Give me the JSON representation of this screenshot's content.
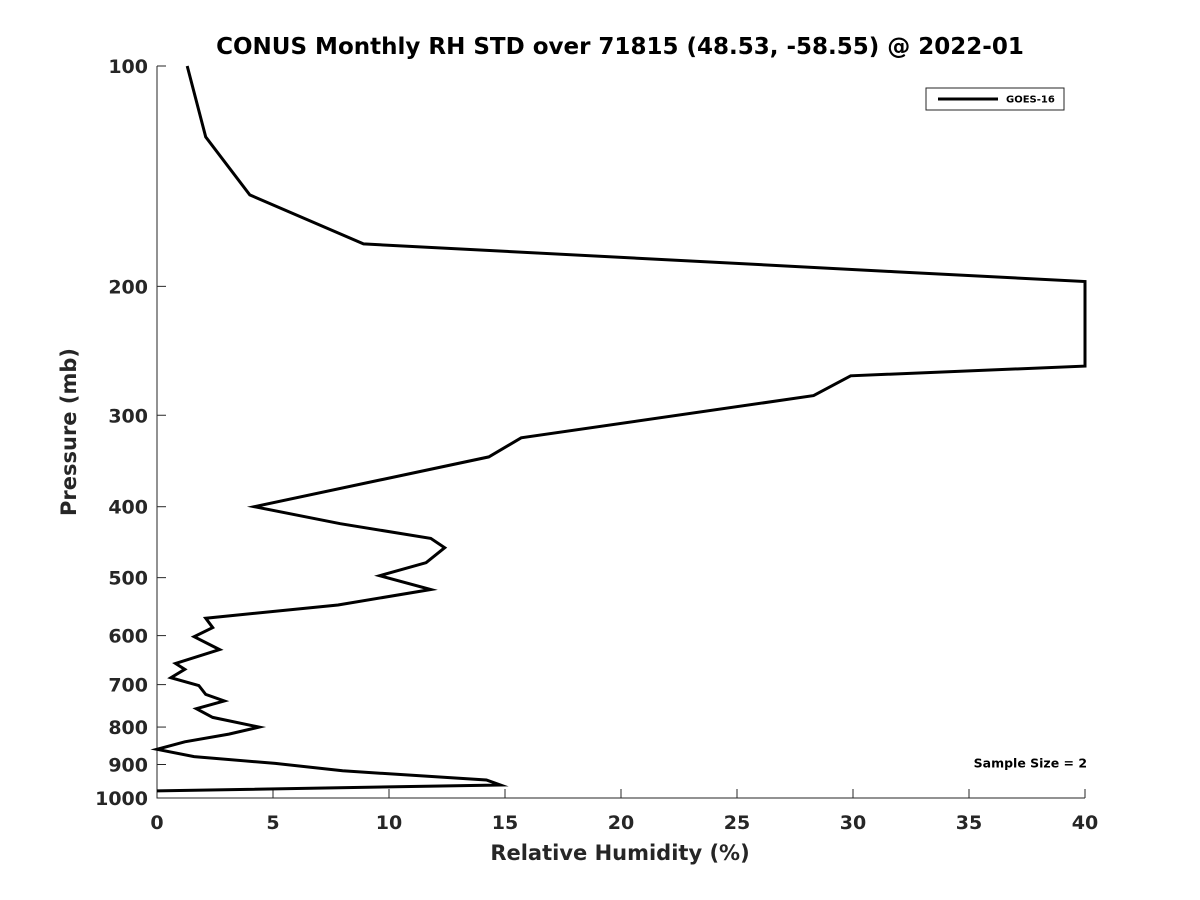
{
  "chart_data": {
    "type": "line",
    "title": "CONUS Monthly RH STD over 71815 (48.53, -58.55) @ 2022-01",
    "xlabel": "Relative Humidity (%)",
    "ylabel": "Pressure (mb)",
    "xlim": [
      0,
      40
    ],
    "ylim": [
      100,
      1000
    ],
    "y_scale": "log",
    "y_reversed": true,
    "x_ticks": [
      0,
      5,
      10,
      15,
      20,
      25,
      30,
      35,
      40
    ],
    "y_ticks": [
      100,
      200,
      300,
      400,
      500,
      600,
      700,
      800,
      900,
      1000
    ],
    "grid": false,
    "legend_position": "top-right",
    "series": [
      {
        "name": "GOES-16",
        "color": "#000000",
        "points": [
          [
            1.3,
            100
          ],
          [
            2.1,
            125
          ],
          [
            4.0,
            150
          ],
          [
            8.9,
            175
          ],
          [
            31.8,
            191
          ],
          [
            40.0,
            197
          ],
          [
            40.0,
            257
          ],
          [
            29.9,
            265
          ],
          [
            28.3,
            282
          ],
          [
            15.7,
            322
          ],
          [
            14.3,
            342
          ],
          [
            4.2,
            400
          ],
          [
            7.9,
            422
          ],
          [
            11.8,
            442
          ],
          [
            12.4,
            455
          ],
          [
            11.6,
            477
          ],
          [
            9.6,
            497
          ],
          [
            11.8,
            519
          ],
          [
            7.8,
            545
          ],
          [
            2.1,
            568
          ],
          [
            2.4,
            585
          ],
          [
            1.6,
            602
          ],
          [
            2.7,
            627
          ],
          [
            0.8,
            655
          ],
          [
            1.2,
            667
          ],
          [
            0.6,
            685
          ],
          [
            1.8,
            702
          ],
          [
            2.1,
            722
          ],
          [
            2.9,
            737
          ],
          [
            1.7,
            755
          ],
          [
            2.4,
            776
          ],
          [
            4.4,
            800
          ],
          [
            3.1,
            818
          ],
          [
            1.2,
            838
          ],
          [
            0.0,
            858
          ],
          [
            1.6,
            878
          ],
          [
            5.1,
            897
          ],
          [
            8.0,
            918
          ],
          [
            14.2,
            945
          ],
          [
            14.8,
            960
          ],
          [
            0.0,
            978
          ]
        ]
      }
    ],
    "annotations": [
      {
        "text": "Sample Size = 2",
        "x": 35.2,
        "y": 900
      }
    ]
  }
}
